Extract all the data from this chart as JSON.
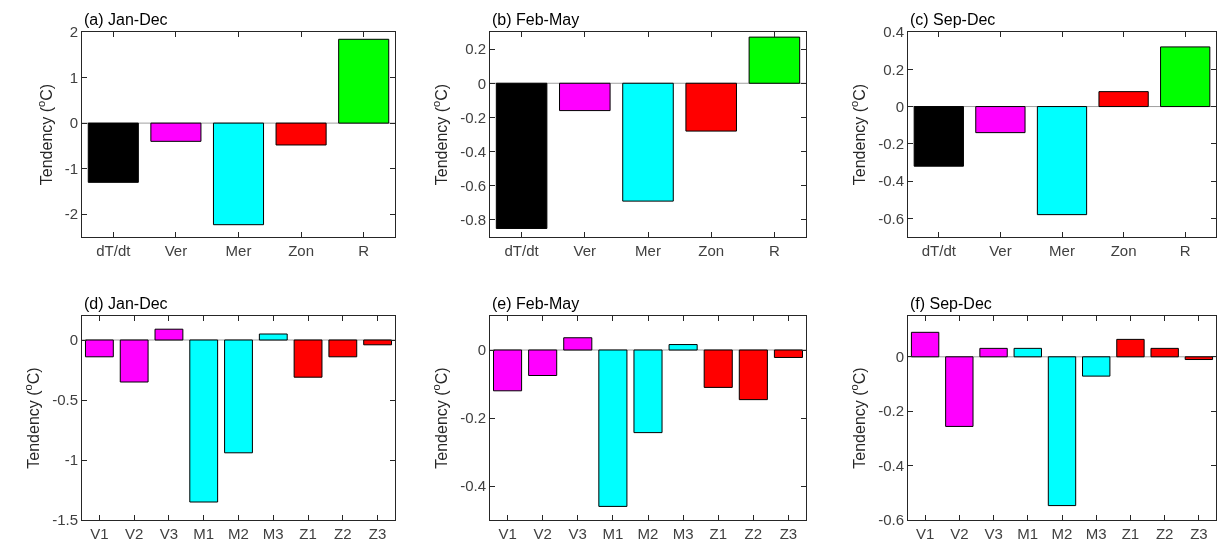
{
  "chart_data": [
    {
      "type": "bar",
      "title": "(a) Jan-Dec",
      "ylabel": "Tendency ($^{o}$C)",
      "categories": [
        "dT/dt",
        "Ver",
        "Mer",
        "Zon",
        "R"
      ],
      "values": [
        -1.3,
        -0.4,
        -2.23,
        -0.48,
        1.84
      ],
      "colors": [
        "#000000",
        "#ff00ff",
        "#00ffff",
        "#ff0000",
        "#00ff00"
      ],
      "ylim": [
        -2.5,
        2
      ],
      "yticks": [
        -2,
        -1,
        0,
        1,
        2
      ],
      "grid": false,
      "ref_lines": [
        {
          "axis": "y",
          "value": 0,
          "color": "#a0a0a0"
        }
      ]
    },
    {
      "type": "bar",
      "title": "(b) Feb-May",
      "ylabel": "Tendency ($^{o}$C)",
      "categories": [
        "dT/dt",
        "Ver",
        "Mer",
        "Zon",
        "R"
      ],
      "values": [
        -0.85,
        -0.16,
        -0.69,
        -0.28,
        0.27
      ],
      "colors": [
        "#000000",
        "#ff00ff",
        "#00ffff",
        "#ff0000",
        "#00ff00"
      ],
      "ylim": [
        -0.9,
        0.3
      ],
      "yticks": [
        -0.8,
        -0.6,
        -0.4,
        -0.2,
        0,
        0.2
      ],
      "grid": false,
      "ref_lines": [
        {
          "axis": "y",
          "value": 0,
          "color": "#a0a0a0"
        }
      ]
    },
    {
      "type": "bar",
      "title": "(c) Sep-Dec",
      "ylabel": "Tendency ($^{o}$C)",
      "categories": [
        "dT/dt",
        "Ver",
        "Mer",
        "Zon",
        "R"
      ],
      "values": [
        -0.32,
        -0.14,
        -0.58,
        0.08,
        0.32
      ],
      "colors": [
        "#000000",
        "#ff00ff",
        "#00ffff",
        "#ff0000",
        "#00ff00"
      ],
      "ylim": [
        -0.7,
        0.4
      ],
      "yticks": [
        -0.6,
        -0.4,
        -0.2,
        0,
        0.2,
        0.4
      ],
      "grid": false,
      "ref_lines": [
        {
          "axis": "y",
          "value": 0,
          "color": "#a0a0a0"
        }
      ]
    },
    {
      "type": "bar",
      "title": "(d) Jan-Dec",
      "ylabel": "Tendency ($^{o}$C)",
      "categories": [
        "V1",
        "V2",
        "V3",
        "M1",
        "M2",
        "M3",
        "Z1",
        "Z2",
        "Z3"
      ],
      "values": [
        -0.14,
        -0.35,
        0.09,
        -1.35,
        -0.94,
        0.05,
        -0.31,
        -0.14,
        -0.04
      ],
      "colors": [
        "#ff00ff",
        "#ff00ff",
        "#ff00ff",
        "#00ffff",
        "#00ffff",
        "#00ffff",
        "#ff0000",
        "#ff0000",
        "#ff0000"
      ],
      "ylim": [
        -1.5,
        0.2
      ],
      "yticks": [
        -1.5,
        -1,
        -0.5,
        0
      ],
      "grid": false,
      "ref_lines": [
        {
          "axis": "y",
          "value": 0,
          "color": "#a0a0a0"
        }
      ]
    },
    {
      "type": "bar",
      "title": "(e) Feb-May",
      "ylabel": "Tendency ($^{o}$C)",
      "categories": [
        "V1",
        "V2",
        "V3",
        "M1",
        "M2",
        "M3",
        "Z1",
        "Z2",
        "Z3"
      ],
      "values": [
        -0.12,
        -0.075,
        0.036,
        -0.46,
        -0.243,
        0.016,
        -0.11,
        -0.146,
        -0.022
      ],
      "colors": [
        "#ff00ff",
        "#ff00ff",
        "#ff00ff",
        "#00ffff",
        "#00ffff",
        "#00ffff",
        "#ff0000",
        "#ff0000",
        "#ff0000"
      ],
      "ylim": [
        -0.5,
        0.1
      ],
      "yticks": [
        -0.4,
        -0.2,
        0
      ],
      "grid": false,
      "ref_lines": [
        {
          "axis": "y",
          "value": 0,
          "color": "#a0a0a0"
        }
      ]
    },
    {
      "type": "bar",
      "title": "(f) Sep-Dec",
      "ylabel": "Tendency ($^{o}$C)",
      "categories": [
        "V1",
        "V2",
        "V3",
        "M1",
        "M2",
        "M3",
        "Z1",
        "Z2",
        "Z3"
      ],
      "values": [
        0.09,
        -0.256,
        0.031,
        0.031,
        -0.547,
        -0.071,
        0.064,
        0.031,
        -0.01
      ],
      "colors": [
        "#ff00ff",
        "#ff00ff",
        "#ff00ff",
        "#00ffff",
        "#00ffff",
        "#00ffff",
        "#ff0000",
        "#ff0000",
        "#ff0000"
      ],
      "ylim": [
        -0.6,
        0.15
      ],
      "yticks": [
        -0.6,
        -0.4,
        -0.2,
        0
      ],
      "grid": false,
      "ref_lines": [
        {
          "axis": "y",
          "value": 0,
          "color": "#a0a0a0"
        }
      ]
    }
  ]
}
